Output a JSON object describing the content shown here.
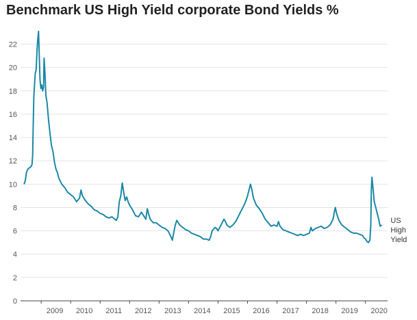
{
  "chart_data": {
    "type": "line",
    "title": "Benchmark US High Yield corporate Bond Yields %",
    "xlabel": "",
    "ylabel": "",
    "xlim": [
      2008.3,
      2020.75
    ],
    "ylim": [
      0,
      23.5
    ],
    "y_ticks": [
      0,
      2,
      4,
      6,
      8,
      10,
      12,
      14,
      16,
      18,
      20,
      22
    ],
    "x_ticks": [
      2009,
      2010,
      2011,
      2012,
      2013,
      2014,
      2015,
      2016,
      2017,
      2018,
      2019,
      2020
    ],
    "grid": "horizontal",
    "line_color": "#1a87a5",
    "series": [
      {
        "label_lines": [
          "US",
          "High",
          "Yield"
        ],
        "points": [
          [
            2008.42,
            10.0
          ],
          [
            2008.46,
            10.3
          ],
          [
            2008.5,
            11.0
          ],
          [
            2008.55,
            11.3
          ],
          [
            2008.6,
            11.4
          ],
          [
            2008.65,
            11.5
          ],
          [
            2008.69,
            11.7
          ],
          [
            2008.71,
            12.5
          ],
          [
            2008.73,
            15.0
          ],
          [
            2008.75,
            17.5
          ],
          [
            2008.78,
            18.8
          ],
          [
            2008.8,
            19.5
          ],
          [
            2008.83,
            19.8
          ],
          [
            2008.86,
            21.5
          ],
          [
            2008.88,
            22.3
          ],
          [
            2008.91,
            23.1
          ],
          [
            2008.93,
            21.5
          ],
          [
            2008.96,
            19.0
          ],
          [
            2008.99,
            18.2
          ],
          [
            2009.02,
            18.5
          ],
          [
            2009.05,
            18.0
          ],
          [
            2009.08,
            18.3
          ],
          [
            2009.1,
            20.8
          ],
          [
            2009.13,
            19.5
          ],
          [
            2009.16,
            17.6
          ],
          [
            2009.2,
            17.0
          ],
          [
            2009.25,
            15.5
          ],
          [
            2009.3,
            14.3
          ],
          [
            2009.35,
            13.3
          ],
          [
            2009.4,
            12.8
          ],
          [
            2009.45,
            11.9
          ],
          [
            2009.5,
            11.3
          ],
          [
            2009.55,
            11.0
          ],
          [
            2009.6,
            10.5
          ],
          [
            2009.7,
            10.0
          ],
          [
            2009.8,
            9.7
          ],
          [
            2009.9,
            9.3
          ],
          [
            2010.0,
            9.1
          ],
          [
            2010.1,
            8.9
          ],
          [
            2010.2,
            8.5
          ],
          [
            2010.3,
            8.8
          ],
          [
            2010.35,
            9.5
          ],
          [
            2010.4,
            9.0
          ],
          [
            2010.5,
            8.6
          ],
          [
            2010.6,
            8.3
          ],
          [
            2010.7,
            8.1
          ],
          [
            2010.8,
            7.8
          ],
          [
            2010.9,
            7.7
          ],
          [
            2011.0,
            7.5
          ],
          [
            2011.1,
            7.4
          ],
          [
            2011.2,
            7.2
          ],
          [
            2011.3,
            7.1
          ],
          [
            2011.4,
            7.2
          ],
          [
            2011.5,
            7.0
          ],
          [
            2011.55,
            6.9
          ],
          [
            2011.6,
            7.2
          ],
          [
            2011.65,
            8.5
          ],
          [
            2011.7,
            9.0
          ],
          [
            2011.75,
            10.1
          ],
          [
            2011.8,
            9.3
          ],
          [
            2011.85,
            8.6
          ],
          [
            2011.9,
            8.9
          ],
          [
            2011.95,
            8.5
          ],
          [
            2012.0,
            8.2
          ],
          [
            2012.1,
            7.8
          ],
          [
            2012.2,
            7.3
          ],
          [
            2012.3,
            7.2
          ],
          [
            2012.4,
            7.6
          ],
          [
            2012.45,
            7.4
          ],
          [
            2012.55,
            7.0
          ],
          [
            2012.6,
            7.9
          ],
          [
            2012.65,
            7.4
          ],
          [
            2012.7,
            7.0
          ],
          [
            2012.8,
            6.7
          ],
          [
            2012.9,
            6.7
          ],
          [
            2013.0,
            6.5
          ],
          [
            2013.1,
            6.3
          ],
          [
            2013.2,
            6.2
          ],
          [
            2013.3,
            6.0
          ],
          [
            2013.4,
            5.5
          ],
          [
            2013.45,
            5.2
          ],
          [
            2013.5,
            5.9
          ],
          [
            2013.55,
            6.5
          ],
          [
            2013.6,
            6.9
          ],
          [
            2013.7,
            6.5
          ],
          [
            2013.8,
            6.3
          ],
          [
            2013.9,
            6.1
          ],
          [
            2014.0,
            6.0
          ],
          [
            2014.1,
            5.8
          ],
          [
            2014.2,
            5.7
          ],
          [
            2014.3,
            5.6
          ],
          [
            2014.4,
            5.5
          ],
          [
            2014.5,
            5.3
          ],
          [
            2014.6,
            5.3
          ],
          [
            2014.7,
            5.2
          ],
          [
            2014.75,
            5.5
          ],
          [
            2014.8,
            6.0
          ],
          [
            2014.9,
            6.3
          ],
          [
            2014.95,
            6.2
          ],
          [
            2015.0,
            6.0
          ],
          [
            2015.1,
            6.5
          ],
          [
            2015.2,
            7.0
          ],
          [
            2015.25,
            6.8
          ],
          [
            2015.3,
            6.5
          ],
          [
            2015.4,
            6.3
          ],
          [
            2015.5,
            6.5
          ],
          [
            2015.6,
            6.8
          ],
          [
            2015.7,
            7.3
          ],
          [
            2015.8,
            7.8
          ],
          [
            2015.9,
            8.3
          ],
          [
            2015.95,
            8.6
          ],
          [
            2016.0,
            9.0
          ],
          [
            2016.05,
            9.5
          ],
          [
            2016.1,
            10.0
          ],
          [
            2016.15,
            9.5
          ],
          [
            2016.2,
            8.8
          ],
          [
            2016.3,
            8.2
          ],
          [
            2016.4,
            7.9
          ],
          [
            2016.5,
            7.5
          ],
          [
            2016.6,
            7.0
          ],
          [
            2016.7,
            6.7
          ],
          [
            2016.8,
            6.4
          ],
          [
            2016.9,
            6.5
          ],
          [
            2017.0,
            6.4
          ],
          [
            2017.05,
            6.8
          ],
          [
            2017.1,
            6.4
          ],
          [
            2017.2,
            6.1
          ],
          [
            2017.3,
            6.0
          ],
          [
            2017.4,
            5.9
          ],
          [
            2017.5,
            5.8
          ],
          [
            2017.6,
            5.7
          ],
          [
            2017.7,
            5.6
          ],
          [
            2017.8,
            5.7
          ],
          [
            2017.9,
            5.6
          ],
          [
            2018.0,
            5.7
          ],
          [
            2018.1,
            5.8
          ],
          [
            2018.15,
            6.3
          ],
          [
            2018.2,
            6.0
          ],
          [
            2018.3,
            6.2
          ],
          [
            2018.4,
            6.3
          ],
          [
            2018.5,
            6.4
          ],
          [
            2018.6,
            6.2
          ],
          [
            2018.7,
            6.3
          ],
          [
            2018.8,
            6.5
          ],
          [
            2018.9,
            7.0
          ],
          [
            2018.95,
            7.7
          ],
          [
            2018.98,
            8.0
          ],
          [
            2019.02,
            7.5
          ],
          [
            2019.1,
            6.9
          ],
          [
            2019.2,
            6.5
          ],
          [
            2019.3,
            6.3
          ],
          [
            2019.4,
            6.1
          ],
          [
            2019.5,
            5.9
          ],
          [
            2019.6,
            5.8
          ],
          [
            2019.7,
            5.8
          ],
          [
            2019.8,
            5.7
          ],
          [
            2019.9,
            5.6
          ],
          [
            2019.95,
            5.4
          ],
          [
            2020.0,
            5.3
          ],
          [
            2020.05,
            5.1
          ],
          [
            2020.1,
            5.0
          ],
          [
            2020.15,
            5.2
          ],
          [
            2020.18,
            6.5
          ],
          [
            2020.2,
            9.5
          ],
          [
            2020.22,
            10.6
          ],
          [
            2020.25,
            9.8
          ],
          [
            2020.3,
            8.5
          ],
          [
            2020.35,
            8.0
          ],
          [
            2020.4,
            7.5
          ],
          [
            2020.45,
            7.0
          ],
          [
            2020.48,
            6.6
          ],
          [
            2020.5,
            6.4
          ],
          [
            2020.55,
            6.5
          ]
        ]
      }
    ]
  }
}
